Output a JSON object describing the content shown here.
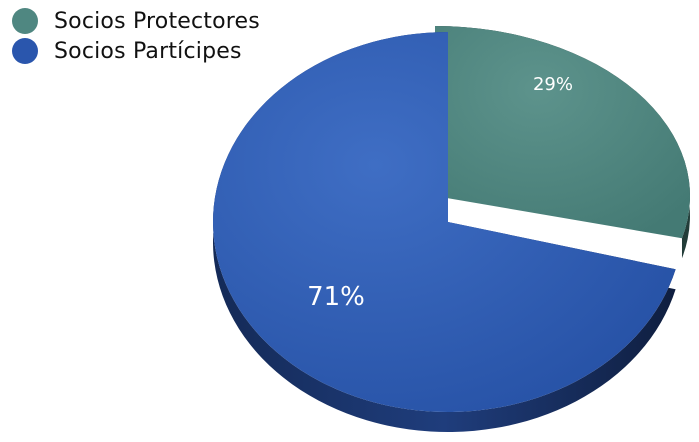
{
  "chart_data": {
    "type": "pie",
    "title": "",
    "categories": [
      "Socios Protectores",
      "Socios Partícipes"
    ],
    "values": [
      29,
      71
    ],
    "data_labels": [
      "29%",
      "71%"
    ],
    "colors": [
      "#4f8781",
      "#2a56ad"
    ],
    "legend_position": "top-left",
    "style": "3d-exploded"
  }
}
